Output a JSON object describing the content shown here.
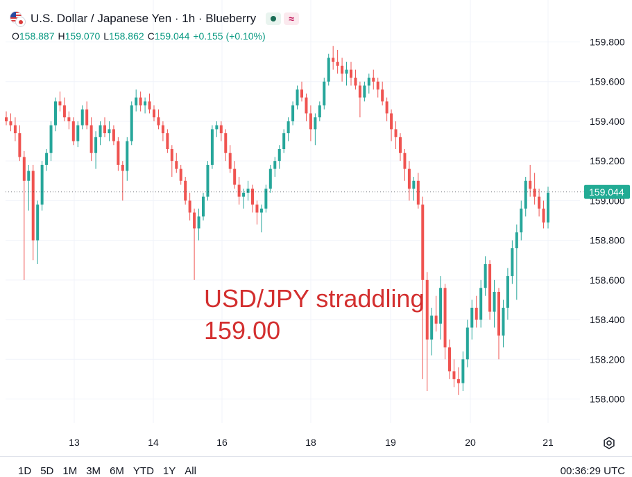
{
  "header": {
    "title": "U.S. Dollar / Japanese Yen · 1h · Blueberry",
    "badge_approx": "≈"
  },
  "ohlc": {
    "o_label": "O",
    "o": "158.887",
    "h_label": "H",
    "h": "159.070",
    "l_label": "L",
    "l": "158.862",
    "c_label": "C",
    "c": "159.044",
    "change": "+0.155 (+0.10%)"
  },
  "annotation": {
    "line1": "USD/JPY straddling",
    "line2": "159.00"
  },
  "range_buttons": [
    "1D",
    "5D",
    "1M",
    "3M",
    "6M",
    "YTD",
    "1Y",
    "All"
  ],
  "clock": "00:36:29 UTC",
  "colors": {
    "up": "#26a69a",
    "down": "#ef5350",
    "price_tag": "#22ab94",
    "annotation": "#d32f2f",
    "grid": "#f0f3fa"
  },
  "chart_data": {
    "type": "candlestick",
    "symbol": "USD/JPY",
    "interval": "1h",
    "y_ticks": [
      159.8,
      159.6,
      159.4,
      159.2,
      159.0,
      158.8,
      158.6,
      158.4,
      158.2,
      158.0
    ],
    "y_tick_labels": [
      "159.800",
      "159.600",
      "159.400",
      "159.200",
      "159.000",
      "158.800",
      "158.600",
      "158.400",
      "158.200",
      "158.000"
    ],
    "ylim": [
      157.92,
      159.86
    ],
    "x_ticks": [
      "13",
      "14",
      "16",
      "18",
      "19",
      "20",
      "21"
    ],
    "last_price": 159.044,
    "last_price_label": "159.044",
    "grid": true,
    "candles": [
      [
        159.42,
        159.45,
        159.38,
        159.4
      ],
      [
        159.4,
        159.44,
        159.35,
        159.38
      ],
      [
        159.38,
        159.42,
        159.3,
        159.34
      ],
      [
        159.34,
        159.38,
        159.2,
        159.22
      ],
      [
        159.22,
        159.25,
        158.6,
        159.1
      ],
      [
        159.1,
        159.18,
        158.95,
        159.15
      ],
      [
        159.15,
        159.18,
        158.7,
        158.8
      ],
      [
        158.8,
        159.0,
        158.68,
        158.98
      ],
      [
        158.98,
        159.2,
        158.95,
        159.18
      ],
      [
        159.18,
        159.26,
        159.15,
        159.24
      ],
      [
        159.24,
        159.4,
        159.2,
        159.38
      ],
      [
        159.38,
        159.52,
        159.35,
        159.5
      ],
      [
        159.5,
        159.55,
        159.45,
        159.48
      ],
      [
        159.48,
        159.52,
        159.4,
        159.42
      ],
      [
        159.42,
        159.45,
        159.36,
        159.4
      ],
      [
        159.4,
        159.42,
        159.28,
        159.3
      ],
      [
        159.3,
        159.4,
        159.27,
        159.38
      ],
      [
        159.38,
        159.48,
        159.36,
        159.46
      ],
      [
        159.46,
        159.5,
        159.36,
        159.38
      ],
      [
        159.38,
        159.42,
        159.2,
        159.24
      ],
      [
        159.24,
        159.35,
        159.16,
        159.32
      ],
      [
        159.32,
        159.4,
        159.28,
        159.38
      ],
      [
        159.38,
        159.42,
        159.32,
        159.34
      ],
      [
        159.34,
        159.4,
        159.3,
        159.36
      ],
      [
        159.36,
        159.38,
        159.28,
        159.3
      ],
      [
        159.3,
        159.32,
        159.15,
        159.18
      ],
      [
        159.18,
        159.2,
        159.0,
        159.15
      ],
      [
        159.15,
        159.32,
        159.1,
        159.3
      ],
      [
        159.3,
        159.5,
        159.28,
        159.48
      ],
      [
        159.48,
        159.56,
        159.45,
        159.52
      ],
      [
        159.52,
        159.55,
        159.45,
        159.48
      ],
      [
        159.48,
        159.52,
        159.44,
        159.5
      ],
      [
        159.5,
        159.54,
        159.44,
        159.46
      ],
      [
        159.46,
        159.48,
        159.4,
        159.42
      ],
      [
        159.42,
        159.46,
        159.36,
        159.38
      ],
      [
        159.38,
        159.4,
        159.3,
        159.34
      ],
      [
        159.34,
        159.36,
        159.24,
        159.26
      ],
      [
        159.26,
        159.28,
        159.12,
        159.2
      ],
      [
        159.2,
        159.24,
        159.14,
        159.16
      ],
      [
        159.16,
        159.18,
        159.08,
        159.1
      ],
      [
        159.1,
        159.12,
        158.98,
        159.0
      ],
      [
        159.0,
        159.04,
        158.9,
        158.94
      ],
      [
        158.94,
        158.96,
        158.6,
        158.86
      ],
      [
        158.86,
        158.96,
        158.8,
        158.92
      ],
      [
        158.92,
        159.04,
        158.9,
        159.02
      ],
      [
        159.02,
        159.2,
        159.0,
        159.18
      ],
      [
        159.18,
        159.38,
        159.16,
        159.36
      ],
      [
        159.36,
        159.4,
        159.32,
        159.38
      ],
      [
        159.38,
        159.4,
        159.3,
        159.34
      ],
      [
        159.34,
        159.36,
        159.2,
        159.24
      ],
      [
        159.24,
        159.28,
        159.14,
        159.16
      ],
      [
        159.16,
        159.2,
        159.06,
        159.08
      ],
      [
        159.08,
        159.12,
        158.98,
        159.02
      ],
      [
        159.02,
        159.06,
        158.96,
        159.04
      ],
      [
        159.04,
        159.1,
        159.0,
        159.06
      ],
      [
        159.06,
        159.08,
        158.94,
        158.98
      ],
      [
        158.98,
        159.0,
        158.88,
        158.94
      ],
      [
        158.94,
        158.98,
        158.84,
        158.96
      ],
      [
        158.96,
        159.08,
        158.94,
        159.06
      ],
      [
        159.06,
        159.18,
        159.04,
        159.16
      ],
      [
        159.16,
        159.22,
        159.12,
        159.2
      ],
      [
        159.2,
        159.28,
        159.16,
        159.26
      ],
      [
        159.26,
        159.36,
        159.24,
        159.34
      ],
      [
        159.34,
        159.42,
        159.3,
        159.4
      ],
      [
        159.4,
        159.5,
        159.38,
        159.48
      ],
      [
        159.48,
        159.58,
        159.46,
        159.56
      ],
      [
        159.56,
        159.6,
        159.5,
        159.52
      ],
      [
        159.52,
        159.54,
        159.4,
        159.44
      ],
      [
        159.44,
        159.48,
        159.3,
        159.36
      ],
      [
        159.36,
        159.44,
        159.28,
        159.42
      ],
      [
        159.42,
        159.5,
        159.4,
        159.48
      ],
      [
        159.48,
        159.62,
        159.46,
        159.6
      ],
      [
        159.6,
        159.74,
        159.58,
        159.72
      ],
      [
        159.72,
        159.78,
        159.66,
        159.7
      ],
      [
        159.7,
        159.76,
        159.64,
        159.68
      ],
      [
        159.68,
        159.72,
        159.6,
        159.64
      ],
      [
        159.64,
        159.7,
        159.58,
        159.66
      ],
      [
        159.66,
        159.7,
        159.58,
        159.62
      ],
      [
        159.62,
        159.66,
        159.56,
        159.58
      ],
      [
        159.58,
        159.6,
        159.42,
        159.52
      ],
      [
        159.52,
        159.6,
        159.5,
        159.58
      ],
      [
        159.58,
        159.64,
        159.54,
        159.62
      ],
      [
        159.62,
        159.66,
        159.56,
        159.6
      ],
      [
        159.6,
        159.62,
        159.52,
        159.56
      ],
      [
        159.56,
        159.6,
        159.48,
        159.5
      ],
      [
        159.5,
        159.52,
        159.4,
        159.44
      ],
      [
        159.44,
        159.46,
        159.3,
        159.36
      ],
      [
        159.36,
        159.4,
        159.26,
        159.32
      ],
      [
        159.32,
        159.34,
        159.2,
        159.24
      ],
      [
        159.24,
        159.26,
        159.1,
        159.16
      ],
      [
        159.16,
        159.2,
        159.0,
        159.06
      ],
      [
        159.06,
        159.12,
        159.0,
        159.1
      ],
      [
        159.1,
        159.14,
        158.96,
        158.98
      ],
      [
        158.98,
        159.02,
        158.1,
        158.6
      ],
      [
        158.6,
        158.64,
        158.04,
        158.3
      ],
      [
        158.3,
        158.46,
        158.22,
        158.42
      ],
      [
        158.42,
        158.52,
        158.34,
        158.38
      ],
      [
        158.38,
        158.62,
        158.3,
        158.56
      ],
      [
        158.56,
        158.58,
        158.2,
        158.26
      ],
      [
        158.26,
        158.3,
        158.1,
        158.14
      ],
      [
        158.14,
        158.2,
        158.06,
        158.1
      ],
      [
        158.1,
        158.16,
        158.02,
        158.08
      ],
      [
        158.08,
        158.24,
        158.04,
        158.2
      ],
      [
        158.2,
        158.4,
        158.16,
        158.36
      ],
      [
        158.36,
        158.5,
        158.3,
        158.46
      ],
      [
        158.46,
        158.52,
        158.36,
        158.4
      ],
      [
        158.4,
        158.6,
        158.36,
        158.56
      ],
      [
        158.56,
        158.72,
        158.52,
        158.68
      ],
      [
        158.68,
        158.7,
        158.4,
        158.44
      ],
      [
        158.44,
        158.6,
        158.36,
        158.54
      ],
      [
        158.54,
        158.56,
        158.2,
        158.32
      ],
      [
        158.32,
        158.5,
        158.26,
        158.46
      ],
      [
        158.46,
        158.66,
        158.4,
        158.62
      ],
      [
        158.62,
        158.8,
        158.58,
        158.76
      ],
      [
        158.76,
        158.88,
        158.5,
        158.84
      ],
      [
        158.84,
        159.0,
        158.8,
        158.96
      ],
      [
        158.96,
        159.12,
        158.92,
        159.1
      ],
      [
        159.1,
        159.18,
        159.02,
        159.06
      ],
      [
        159.06,
        159.14,
        158.98,
        159.02
      ],
      [
        159.02,
        159.06,
        158.92,
        158.96
      ],
      [
        158.96,
        159.0,
        158.86,
        158.89
      ],
      [
        158.89,
        159.07,
        158.86,
        159.04
      ]
    ]
  }
}
